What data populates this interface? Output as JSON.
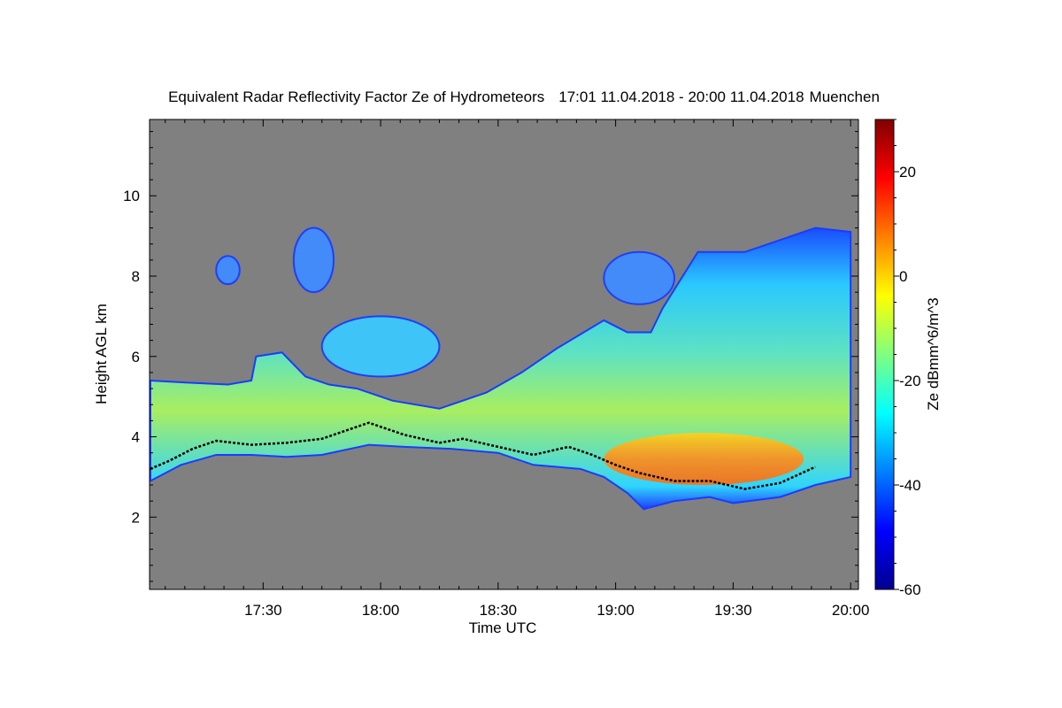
{
  "chart_data": {
    "type": "heatmap",
    "title": "Equivalent Radar Reflectivity Factor Ze of Hydrometeors",
    "period": "17:01 11.04.2018 - 20:00 11.04.2018",
    "location": "Muenchen",
    "xlabel": "Time UTC",
    "ylabel": "Height AGL km",
    "x_range": [
      "17:01",
      "20:00"
    ],
    "x_ticks": [
      "17:30",
      "18:00",
      "18:30",
      "19:00",
      "19:30",
      "20:00"
    ],
    "y_range_km": [
      0.2,
      11.9
    ],
    "y_ticks": [
      2,
      4,
      6,
      8,
      10
    ],
    "background_color": "#808080",
    "colorbar": {
      "label": "Ze dBmm^6/m^3",
      "range": [
        -60,
        30
      ],
      "ticks": [
        20,
        0,
        -20,
        -40,
        -60
      ],
      "colormap": "jet"
    },
    "cloud_top_km": [
      [
        17.02,
        5.4
      ],
      [
        17.17,
        5.35
      ],
      [
        17.35,
        5.3
      ],
      [
        17.45,
        5.4
      ],
      [
        17.47,
        6.0
      ],
      [
        17.58,
        6.1
      ],
      [
        17.68,
        5.5
      ],
      [
        17.78,
        5.3
      ],
      [
        17.9,
        5.2
      ],
      [
        18.05,
        4.9
      ],
      [
        18.25,
        4.7
      ],
      [
        18.45,
        5.1
      ],
      [
        18.6,
        5.6
      ],
      [
        18.75,
        6.2
      ],
      [
        18.95,
        6.9
      ],
      [
        19.05,
        6.6
      ],
      [
        19.15,
        6.6
      ],
      [
        19.2,
        7.2
      ],
      [
        19.35,
        8.6
      ],
      [
        19.55,
        8.6
      ],
      [
        19.7,
        8.9
      ],
      [
        19.85,
        9.2
      ],
      [
        20.0,
        9.1
      ]
    ],
    "cloud_base_km": [
      [
        17.02,
        2.9
      ],
      [
        17.15,
        3.3
      ],
      [
        17.3,
        3.55
      ],
      [
        17.45,
        3.55
      ],
      [
        17.6,
        3.5
      ],
      [
        17.75,
        3.55
      ],
      [
        17.95,
        3.8
      ],
      [
        18.1,
        3.75
      ],
      [
        18.3,
        3.7
      ],
      [
        18.5,
        3.6
      ],
      [
        18.65,
        3.3
      ],
      [
        18.85,
        3.2
      ],
      [
        18.95,
        3.0
      ],
      [
        19.05,
        2.6
      ],
      [
        19.12,
        2.2
      ],
      [
        19.25,
        2.4
      ],
      [
        19.4,
        2.5
      ],
      [
        19.5,
        2.35
      ],
      [
        19.7,
        2.5
      ],
      [
        19.85,
        2.8
      ],
      [
        20.0,
        3.0
      ]
    ],
    "upper_cloud_patches": [
      {
        "x": [
          17.75,
          18.25
        ],
        "y_km": [
          5.5,
          7.0
        ],
        "ze_dbz": -30
      },
      {
        "x": [
          17.3,
          17.4
        ],
        "y_km": [
          7.8,
          8.5
        ],
        "ze_dbz": -40
      },
      {
        "x": [
          17.63,
          17.8
        ],
        "y_km": [
          7.6,
          9.2
        ],
        "ze_dbz": -40
      },
      {
        "x": [
          18.95,
          19.25
        ],
        "y_km": [
          7.3,
          8.6
        ],
        "ze_dbz": -40
      }
    ],
    "intense_region": {
      "x": [
        18.95,
        19.8
      ],
      "y_km": [
        2.8,
        4.1
      ],
      "ze_dbz": 5
    },
    "melting_layer_km": [
      [
        17.02,
        3.2
      ],
      [
        17.1,
        3.4
      ],
      [
        17.2,
        3.7
      ],
      [
        17.3,
        3.9
      ],
      [
        17.45,
        3.8
      ],
      [
        17.6,
        3.85
      ],
      [
        17.75,
        3.95
      ],
      [
        17.95,
        4.35
      ],
      [
        18.1,
        4.05
      ],
      [
        18.25,
        3.85
      ],
      [
        18.35,
        3.95
      ],
      [
        18.5,
        3.75
      ],
      [
        18.65,
        3.55
      ],
      [
        18.8,
        3.75
      ],
      [
        18.9,
        3.55
      ],
      [
        19.0,
        3.3
      ],
      [
        19.1,
        3.1
      ],
      [
        19.25,
        2.9
      ],
      [
        19.4,
        2.9
      ],
      [
        19.55,
        2.7
      ],
      [
        19.7,
        2.85
      ],
      [
        19.85,
        3.25
      ]
    ]
  }
}
